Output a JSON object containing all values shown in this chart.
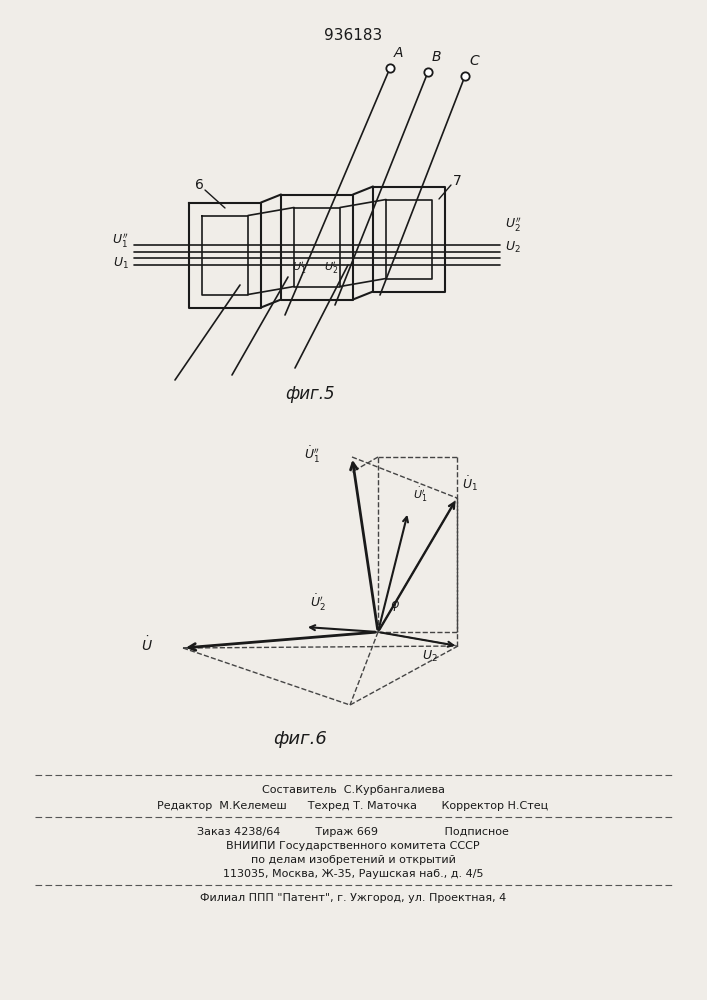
{
  "title": "936183",
  "fig5_label": "фиг.5",
  "fig6_label": "фиг.6",
  "bg_color": "#f0ede8",
  "line_color": "#1a1a1a",
  "footer_lines": [
    "Составитель  С.Курбангалиева",
    "Редактор  М.Келемеш      Техред Т. Маточка       Корректор Н.Стец",
    "Заказ 4238/64          Тираж 669                   Подписное",
    "ВНИИПИ Государственного комитета СССР",
    "по делам изобретений и открытий",
    "113035, Москва, Ж-35, Раушская наб., д. 4/5",
    "Филиал ППП \"Патент\", г. Ужгород, ул. Проектная, 4"
  ]
}
